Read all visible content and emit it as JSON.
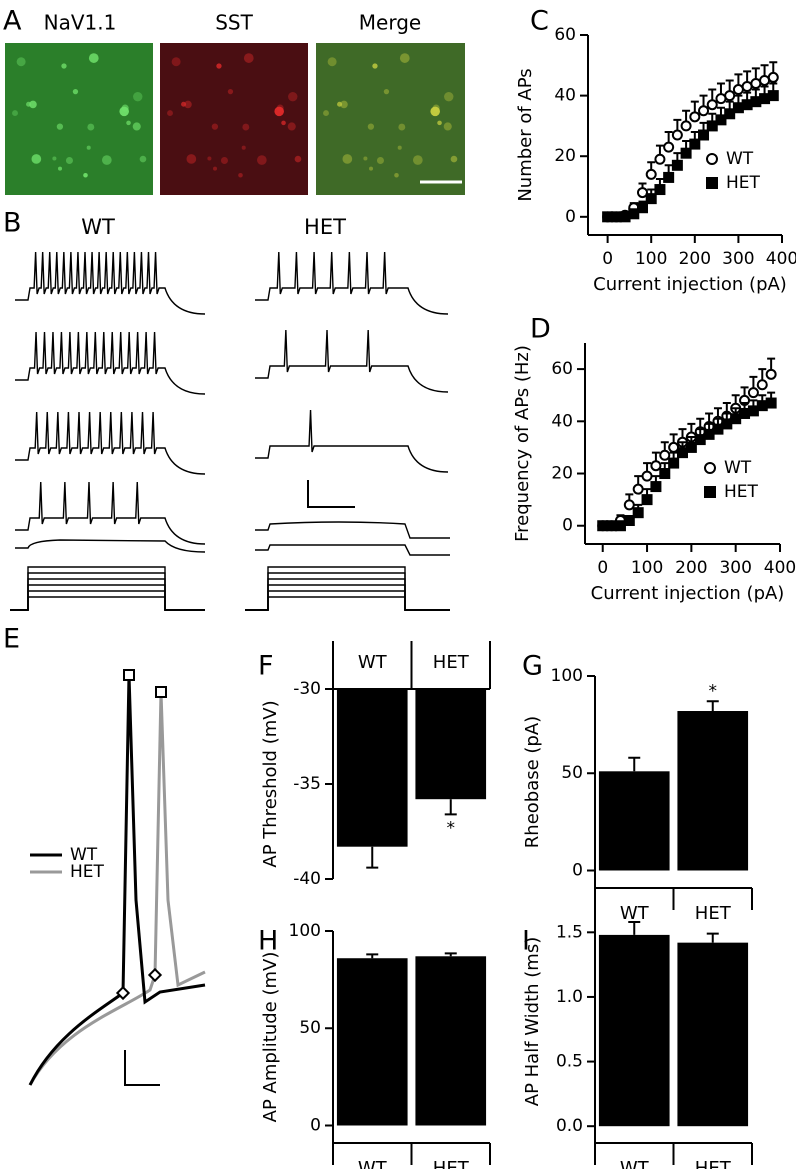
{
  "figure": {
    "panel_labels": [
      "A",
      "B",
      "C",
      "D",
      "E",
      "F",
      "G",
      "H",
      "I"
    ],
    "images": [
      "NaV1.1",
      "SST",
      "Merge"
    ],
    "traces": [
      "WT",
      "HET"
    ],
    "waveform_legend": [
      "WT",
      "HET"
    ]
  },
  "chart_data": [
    {
      "type": "scatter",
      "xlabel": "Current injection (pA)",
      "ylabel": "Number of APs",
      "x": [
        0,
        20,
        40,
        60,
        80,
        100,
        120,
        140,
        160,
        180,
        200,
        220,
        240,
        260,
        280,
        300,
        320,
        340,
        360,
        380
      ],
      "series": [
        {
          "name": "WT",
          "color": "#000000",
          "marker": "open-circle",
          "values": [
            0,
            0,
            0.5,
            3,
            8,
            14,
            19,
            23,
            27,
            30,
            33,
            35,
            37,
            39,
            40,
            42,
            43,
            44,
            45,
            46
          ],
          "errors": [
            0.3,
            0.3,
            0.5,
            1.5,
            3,
            4,
            4.5,
            5,
            5,
            5,
            5,
            5,
            5,
            5,
            5,
            5,
            5,
            5,
            5,
            5
          ]
        },
        {
          "name": "HET",
          "color": "#000000",
          "marker": "filled-square",
          "values": [
            0,
            0,
            0,
            1,
            3,
            6,
            9,
            13,
            17,
            21,
            24,
            27,
            30,
            32,
            34,
            36,
            37,
            38,
            39,
            40
          ],
          "errors": [
            0.3,
            0.3,
            0.3,
            1,
            2,
            3,
            3.5,
            4,
            4,
            4,
            4,
            4,
            4,
            4,
            4,
            4,
            4,
            4,
            4,
            4
          ]
        }
      ],
      "xlim": [
        -45,
        400
      ],
      "ylim": [
        -6,
        60
      ],
      "xticks": [
        0,
        100,
        200,
        300,
        400
      ],
      "yticks": [
        0,
        20,
        40,
        60
      ],
      "legend": "lower right"
    },
    {
      "type": "scatter",
      "xlabel": "Current injection (pA)",
      "ylabel": "Frequency of APs (Hz)",
      "x": [
        0,
        20,
        40,
        60,
        80,
        100,
        120,
        140,
        160,
        180,
        200,
        220,
        240,
        260,
        280,
        300,
        320,
        340,
        360,
        380
      ],
      "series": [
        {
          "name": "WT",
          "color": "#000000",
          "marker": "open-circle",
          "values": [
            0,
            0,
            2,
            8,
            14,
            19,
            23,
            27,
            30,
            32,
            34,
            36,
            38,
            40,
            42,
            45,
            48,
            51,
            54,
            58
          ],
          "errors": [
            0.5,
            0.5,
            2,
            4,
            5,
            5,
            5,
            5,
            5,
            5,
            5,
            5,
            5,
            5,
            5,
            5,
            5,
            6,
            6,
            6
          ]
        },
        {
          "name": "HET",
          "color": "#000000",
          "marker": "filled-square",
          "values": [
            0,
            0,
            0,
            2,
            5,
            10,
            15,
            20,
            24,
            28,
            30,
            33,
            35,
            37,
            39,
            41,
            43,
            44,
            46,
            47
          ],
          "errors": [
            0.5,
            0.5,
            0.5,
            1.5,
            3,
            4,
            4,
            4,
            4,
            4,
            4,
            4,
            4,
            4,
            4,
            4,
            4,
            4,
            4,
            4
          ]
        }
      ],
      "xlim": [
        -40,
        400
      ],
      "ylim": [
        -7,
        70
      ],
      "xticks": [
        0,
        100,
        200,
        300,
        400
      ],
      "yticks": [
        0,
        20,
        40,
        60
      ],
      "legend": "lower right"
    },
    {
      "type": "bar",
      "ylabel": "AP Threshold (mV)",
      "categories": [
        "WT",
        "HET"
      ],
      "values": [
        -38.3,
        -35.8
      ],
      "errors": [
        1.1,
        0.8
      ],
      "color": "#000000",
      "ylim": [
        -40,
        -30
      ],
      "yticks": [
        -40,
        -35,
        -30
      ],
      "annotations": [
        {
          "index": 1,
          "text": "*"
        }
      ]
    },
    {
      "type": "bar",
      "ylabel": "Rheobase (pA)",
      "categories": [
        "WT",
        "HET"
      ],
      "values": [
        51,
        82
      ],
      "errors": [
        7,
        5
      ],
      "color": "#000000",
      "ylim": [
        -9,
        100
      ],
      "yticks": [
        0,
        50,
        100
      ],
      "annotations": [
        {
          "index": 1,
          "text": "*"
        }
      ]
    },
    {
      "type": "bar",
      "ylabel": "AP Amplitude (mV)",
      "categories": [
        "WT",
        "HET"
      ],
      "values": [
        86,
        87
      ],
      "errors": [
        2,
        1.5
      ],
      "color": "#000000",
      "ylim": [
        -9,
        100
      ],
      "yticks": [
        0,
        50,
        100
      ]
    },
    {
      "type": "bar",
      "ylabel": "AP Half Width (ms)",
      "categories": [
        "WT",
        "HET"
      ],
      "values": [
        1.48,
        1.42
      ],
      "errors": [
        0.1,
        0.07
      ],
      "color": "#000000",
      "ylim": [
        -0.13,
        1.75
      ],
      "yticks": [
        {
          "value": 0,
          "label": "0.0"
        },
        {
          "value": 0.5,
          "label": "0.5"
        },
        {
          "value": 1,
          "label": "1.0"
        },
        1.5
      ]
    }
  ]
}
